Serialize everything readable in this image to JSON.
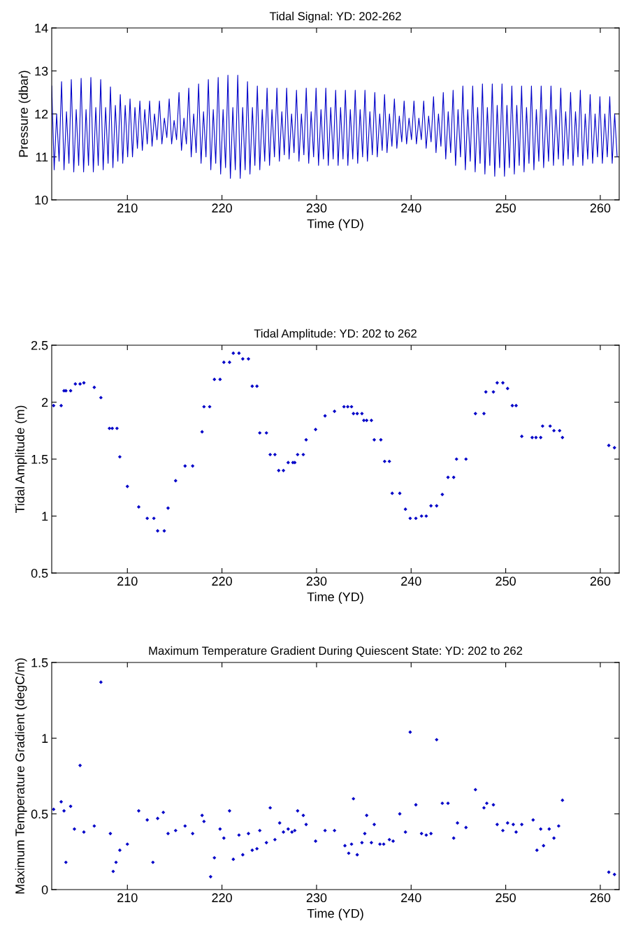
{
  "chart_data": [
    {
      "type": "line",
      "title": "Tidal Signal: YD: 202-262",
      "xlabel": "Time (YD)",
      "ylabel": "Pressure (dbar)",
      "xlim": [
        202,
        262
      ],
      "xticks": [
        210,
        220,
        230,
        240,
        250,
        260
      ],
      "ylim": [
        10,
        14
      ],
      "yticks": [
        10,
        11,
        12,
        13,
        14
      ],
      "grid": false,
      "legend": false,
      "marker": "none",
      "line_style": "solid",
      "series": [
        {
          "color": "#0000c8",
          "x": [
            202.0,
            202.26,
            202.52,
            202.78,
            203.04,
            203.3,
            203.56,
            203.82,
            204.07,
            204.33,
            204.59,
            204.85,
            205.11,
            205.37,
            205.63,
            205.89,
            206.14,
            206.4,
            206.66,
            206.92,
            207.18,
            207.44,
            207.7,
            207.96,
            208.21,
            208.47,
            208.73,
            208.99,
            209.25,
            209.51,
            209.77,
            210.03,
            210.28,
            210.54,
            210.8,
            211.06,
            211.32,
            211.58,
            211.84,
            212.1,
            212.35,
            212.61,
            212.87,
            213.13,
            213.39,
            213.65,
            213.91,
            214.17,
            214.42,
            214.68,
            214.94,
            215.2,
            215.46,
            215.72,
            215.98,
            216.24,
            216.49,
            216.75,
            217.01,
            217.27,
            217.53,
            217.79,
            218.05,
            218.31,
            218.56,
            218.82,
            219.08,
            219.34,
            219.6,
            219.86,
            220.12,
            220.38,
            220.63,
            220.89,
            221.15,
            221.41,
            221.67,
            221.93,
            222.19,
            222.45,
            222.7,
            222.96,
            223.22,
            223.48,
            223.74,
            224.0,
            224.26,
            224.52,
            224.77,
            225.03,
            225.29,
            225.55,
            225.81,
            226.07,
            226.33,
            226.59,
            226.84,
            227.1,
            227.36,
            227.62,
            227.88,
            228.14,
            228.4,
            228.66,
            228.91,
            229.17,
            229.43,
            229.69,
            229.95,
            230.21,
            230.47,
            230.73,
            230.98,
            231.24,
            231.5,
            231.76,
            232.02,
            232.28,
            232.54,
            232.8,
            233.05,
            233.31,
            233.57,
            233.83,
            234.09,
            234.35,
            234.61,
            234.87,
            235.12,
            235.38,
            235.64,
            235.9,
            236.16,
            236.42,
            236.68,
            236.94,
            237.19,
            237.45,
            237.71,
            237.97,
            238.23,
            238.49,
            238.75,
            239.01,
            239.26,
            239.52,
            239.78,
            240.04,
            240.3,
            240.56,
            240.82,
            241.08,
            241.33,
            241.59,
            241.85,
            242.11,
            242.37,
            242.63,
            242.89,
            243.15,
            243.4,
            243.66,
            243.92,
            244.18,
            244.44,
            244.7,
            244.96,
            245.22,
            245.47,
            245.73,
            245.99,
            246.25,
            246.51,
            246.77,
            247.03,
            247.29,
            247.54,
            247.8,
            248.06,
            248.32,
            248.58,
            248.84,
            249.1,
            249.36,
            249.61,
            249.87,
            250.13,
            250.39,
            250.65,
            250.91,
            251.17,
            251.43,
            251.68,
            251.94,
            252.2,
            252.46,
            252.72,
            252.98,
            253.24,
            253.5,
            253.75,
            254.01,
            254.27,
            254.53,
            254.79,
            255.05,
            255.31,
            255.57,
            255.82,
            256.08,
            256.34,
            256.6,
            256.86,
            257.12,
            257.38,
            257.64,
            257.89,
            258.15,
            258.41,
            258.67,
            258.93,
            259.19,
            259.45,
            259.71,
            259.96,
            260.22,
            260.48,
            260.74,
            261.0,
            261.26,
            261.52,
            261.78
          ],
          "values": [
            12.65,
            10.7,
            12.0,
            10.9,
            12.75,
            10.7,
            12.05,
            10.85,
            12.8,
            10.65,
            12.1,
            10.8,
            12.83,
            10.65,
            12.1,
            10.8,
            12.85,
            10.65,
            12.15,
            10.8,
            12.8,
            10.7,
            12.15,
            10.85,
            12.63,
            10.75,
            12.2,
            10.9,
            12.45,
            10.85,
            12.2,
            11.0,
            12.35,
            11.0,
            12.15,
            11.2,
            12.3,
            11.15,
            12.1,
            11.3,
            12.3,
            11.25,
            12.0,
            11.4,
            12.3,
            11.3,
            11.9,
            11.45,
            12.35,
            11.3,
            11.85,
            11.4,
            12.5,
            11.15,
            11.9,
            11.3,
            12.6,
            11.0,
            12.0,
            11.1,
            12.7,
            10.85,
            12.05,
            11.0,
            12.8,
            10.7,
            12.1,
            10.85,
            12.85,
            10.6,
            12.1,
            10.75,
            12.9,
            10.5,
            12.15,
            10.7,
            12.9,
            10.5,
            12.15,
            10.7,
            12.75,
            10.6,
            12.15,
            10.8,
            12.65,
            10.7,
            12.1,
            10.9,
            12.6,
            10.8,
            12.1,
            11.0,
            12.6,
            10.9,
            12.05,
            11.05,
            12.6,
            10.95,
            12.0,
            11.1,
            12.55,
            10.9,
            12.0,
            11.05,
            12.6,
            10.85,
            12.05,
            11.0,
            12.6,
            10.8,
            12.1,
            10.95,
            12.6,
            10.8,
            12.15,
            10.95,
            12.55,
            10.8,
            12.15,
            10.95,
            12.55,
            10.8,
            12.1,
            10.95,
            12.55,
            10.85,
            12.1,
            11.0,
            12.55,
            10.9,
            12.05,
            11.05,
            12.5,
            11.0,
            12.0,
            11.15,
            12.45,
            11.1,
            12.0,
            11.25,
            12.35,
            11.2,
            11.95,
            11.35,
            12.3,
            11.3,
            11.9,
            11.4,
            12.3,
            11.3,
            11.9,
            11.4,
            12.3,
            11.2,
            11.95,
            11.35,
            12.4,
            11.1,
            12.0,
            11.25,
            12.5,
            10.95,
            12.05,
            11.1,
            12.55,
            10.8,
            12.1,
            11.0,
            12.65,
            10.7,
            12.1,
            10.9,
            12.65,
            10.65,
            12.15,
            10.85,
            12.7,
            10.6,
            12.15,
            10.8,
            12.7,
            10.55,
            12.2,
            10.75,
            12.7,
            10.55,
            12.2,
            10.75,
            12.65,
            10.6,
            12.2,
            10.8,
            12.65,
            10.65,
            12.15,
            10.85,
            12.65,
            10.7,
            12.1,
            10.9,
            12.65,
            10.75,
            12.1,
            10.9,
            12.65,
            10.8,
            12.1,
            10.95,
            12.6,
            10.8,
            12.05,
            10.95,
            12.5,
            10.8,
            12.05,
            11.0,
            12.55,
            10.8,
            12.0,
            10.95,
            12.45,
            10.85,
            12.0,
            11.0,
            12.4,
            10.85,
            12.0,
            11.0,
            12.4,
            10.85,
            12.0,
            11.0
          ]
        }
      ]
    },
    {
      "type": "scatter",
      "title": "Tidal Amplitude: YD: 202 to 262",
      "xlabel": "Time (YD)",
      "ylabel": "Tidal Amplitude (m)",
      "xlim": [
        202,
        262
      ],
      "xticks": [
        210,
        220,
        230,
        240,
        250,
        260
      ],
      "ylim": [
        0.5,
        2.5
      ],
      "yticks": [
        0.5,
        1,
        1.5,
        2,
        2.5
      ],
      "grid": false,
      "legend": false,
      "marker": "diamond",
      "series": [
        {
          "color": "#0000c8",
          "x": [
            202.2,
            203.0,
            203.3,
            203.5,
            204.0,
            204.5,
            205.0,
            205.4,
            206.5,
            207.2,
            208.1,
            208.4,
            208.9,
            209.2,
            210.0,
            211.2,
            212.1,
            212.8,
            213.2,
            213.9,
            214.3,
            215.1,
            216.1,
            216.9,
            217.9,
            218.1,
            218.7,
            219.2,
            219.8,
            220.2,
            220.8,
            221.2,
            221.8,
            222.2,
            222.8,
            223.2,
            223.7,
            224.0,
            224.7,
            225.1,
            225.6,
            226.0,
            226.5,
            227.0,
            227.5,
            227.7,
            228.0,
            228.6,
            228.9,
            229.9,
            230.9,
            231.9,
            232.9,
            233.3,
            233.7,
            233.9,
            234.3,
            234.8,
            235.0,
            235.3,
            235.8,
            236.1,
            236.8,
            237.2,
            237.7,
            238.0,
            238.8,
            239.4,
            239.9,
            240.5,
            241.1,
            241.6,
            242.1,
            242.7,
            243.3,
            243.9,
            244.5,
            244.8,
            245.8,
            246.8,
            247.7,
            247.9,
            248.7,
            249.1,
            249.7,
            250.2,
            250.7,
            251.1,
            251.7,
            252.8,
            253.2,
            253.7,
            253.9,
            254.7,
            255.1,
            255.7,
            256.0,
            260.9,
            261.5
          ],
          "values": [
            1.97,
            1.97,
            2.1,
            2.1,
            2.1,
            2.16,
            2.16,
            2.17,
            2.13,
            2.04,
            1.77,
            1.77,
            1.77,
            1.52,
            1.26,
            1.08,
            0.98,
            0.98,
            0.87,
            0.87,
            1.07,
            1.31,
            1.44,
            1.44,
            1.74,
            1.96,
            1.96,
            2.2,
            2.2,
            2.35,
            2.35,
            2.43,
            2.43,
            2.38,
            2.38,
            2.14,
            2.14,
            1.73,
            1.73,
            1.54,
            1.54,
            1.4,
            1.4,
            1.47,
            1.47,
            1.47,
            1.54,
            1.54,
            1.67,
            1.76,
            1.88,
            1.92,
            1.96,
            1.96,
            1.96,
            1.9,
            1.9,
            1.9,
            1.84,
            1.84,
            1.84,
            1.67,
            1.67,
            1.48,
            1.48,
            1.2,
            1.2,
            1.06,
            0.98,
            0.98,
            1.0,
            1.0,
            1.09,
            1.09,
            1.19,
            1.34,
            1.34,
            1.5,
            1.5,
            1.9,
            1.9,
            2.09,
            2.09,
            2.17,
            2.17,
            2.12,
            1.97,
            1.97,
            1.7,
            1.69,
            1.69,
            1.69,
            1.79,
            1.79,
            1.75,
            1.75,
            1.69,
            1.62,
            1.6
          ]
        }
      ]
    },
    {
      "type": "scatter",
      "title": "Maximum Temperature Gradient During Quiescent State: YD: 202 to 262",
      "xlabel": "Time (YD)",
      "ylabel": "Maximum Temperature Gradient (degC/m)",
      "xlim": [
        202,
        262
      ],
      "xticks": [
        210,
        220,
        230,
        240,
        250,
        260
      ],
      "ylim": [
        0,
        1.5
      ],
      "yticks": [
        0,
        0.5,
        1,
        1.5
      ],
      "grid": false,
      "legend": false,
      "marker": "diamond",
      "series": [
        {
          "color": "#0000c8",
          "x": [
            202.2,
            203.0,
            203.3,
            203.5,
            204.0,
            204.4,
            205.0,
            205.4,
            206.5,
            207.2,
            208.2,
            208.5,
            208.8,
            209.2,
            210.0,
            211.2,
            212.1,
            212.7,
            213.2,
            213.8,
            214.3,
            215.1,
            216.1,
            216.9,
            217.9,
            218.1,
            218.8,
            219.2,
            219.8,
            220.2,
            220.8,
            221.2,
            221.8,
            222.2,
            222.8,
            223.2,
            223.7,
            224.0,
            224.7,
            225.1,
            225.6,
            226.1,
            226.5,
            227.0,
            227.4,
            227.7,
            228.0,
            228.6,
            228.9,
            229.9,
            230.9,
            231.9,
            233.0,
            233.4,
            233.7,
            233.9,
            234.3,
            234.8,
            235.1,
            235.3,
            235.8,
            236.1,
            236.7,
            237.1,
            237.7,
            238.1,
            238.8,
            239.4,
            239.9,
            240.5,
            241.1,
            241.6,
            242.1,
            242.7,
            243.3,
            243.9,
            244.5,
            244.9,
            245.8,
            246.8,
            247.7,
            248.0,
            248.7,
            249.1,
            249.7,
            250.2,
            250.8,
            251.1,
            251.7,
            252.9,
            253.3,
            253.7,
            254.0,
            254.6,
            255.1,
            255.6,
            256.0,
            260.9,
            261.5
          ],
          "values": [
            0.53,
            0.58,
            0.52,
            0.18,
            0.55,
            0.4,
            0.82,
            0.38,
            0.42,
            1.37,
            0.37,
            0.12,
            0.18,
            0.26,
            0.3,
            0.52,
            0.46,
            0.18,
            0.47,
            0.51,
            0.37,
            0.39,
            0.42,
            0.37,
            0.49,
            0.45,
            0.085,
            0.21,
            0.4,
            0.34,
            0.52,
            0.2,
            0.36,
            0.23,
            0.37,
            0.26,
            0.27,
            0.39,
            0.31,
            0.54,
            0.33,
            0.44,
            0.38,
            0.4,
            0.38,
            0.39,
            0.52,
            0.49,
            0.43,
            0.32,
            0.39,
            0.39,
            0.29,
            0.24,
            0.3,
            0.6,
            0.23,
            0.31,
            0.37,
            0.49,
            0.31,
            0.43,
            0.3,
            0.3,
            0.33,
            0.32,
            0.5,
            0.38,
            1.04,
            0.56,
            0.37,
            0.36,
            0.37,
            0.99,
            0.57,
            0.57,
            0.34,
            0.44,
            0.41,
            0.66,
            0.54,
            0.57,
            0.56,
            0.43,
            0.39,
            0.44,
            0.43,
            0.38,
            0.43,
            0.46,
            0.26,
            0.4,
            0.29,
            0.4,
            0.34,
            0.42,
            0.59,
            0.115,
            0.1
          ]
        }
      ]
    }
  ]
}
